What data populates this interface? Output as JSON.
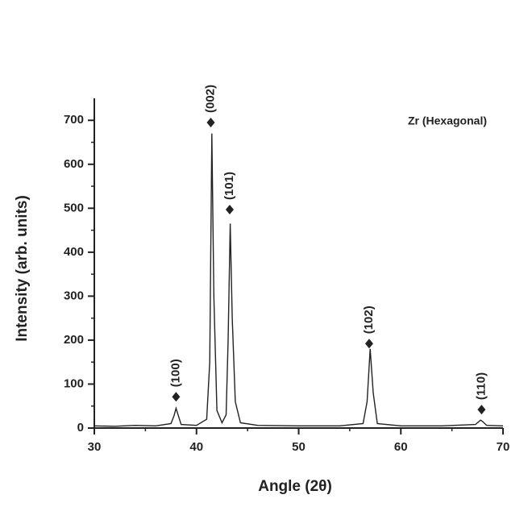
{
  "chart_data": {
    "type": "line",
    "title": "Zr (Hexagonal)",
    "x_label": "Angle (2θ)",
    "y_label": "Intensity (arb. units)",
    "xlim": [
      30,
      70
    ],
    "ylim": [
      0,
      750
    ],
    "xticks": [
      30,
      40,
      50,
      60,
      70
    ],
    "xminor": [
      35,
      45,
      55,
      65
    ],
    "yticks": [
      0,
      100,
      200,
      300,
      400,
      500,
      600,
      700
    ],
    "yminor": [
      50,
      150,
      250,
      350,
      450,
      550,
      650
    ],
    "series": [
      {
        "color": "#222222",
        "x": [
          30,
          32,
          34,
          36,
          37.5,
          37.8,
          38.0,
          38.2,
          38.5,
          40,
          41.0,
          41.3,
          41.5,
          41.7,
          42.0,
          42.5,
          42.9,
          43.1,
          43.3,
          43.5,
          43.8,
          44.3,
          46,
          50,
          54,
          56.3,
          56.7,
          57.0,
          57.3,
          57.7,
          60,
          64,
          67.3,
          67.8,
          68.0,
          68.4,
          70
        ],
        "values": [
          5,
          4,
          6,
          5,
          10,
          28,
          45,
          30,
          8,
          6,
          20,
          150,
          670,
          300,
          40,
          12,
          30,
          200,
          465,
          250,
          60,
          12,
          6,
          5,
          5,
          10,
          60,
          180,
          80,
          10,
          5,
          5,
          8,
          18,
          15,
          6,
          5
        ]
      }
    ],
    "peaks": [
      {
        "x": 38.0,
        "y": 71,
        "label": "(100)"
      },
      {
        "x": 41.4,
        "y": 695,
        "label": "(002)"
      },
      {
        "x": 43.25,
        "y": 497,
        "label": "(101)"
      },
      {
        "x": 56.9,
        "y": 192,
        "label": "(102)"
      },
      {
        "x": 67.9,
        "y": 42,
        "label": "(110)"
      }
    ]
  }
}
